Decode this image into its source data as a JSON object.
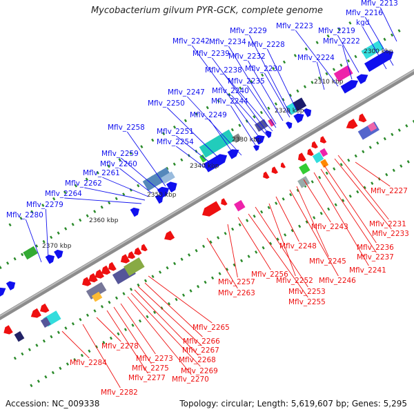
{
  "header": {
    "title": "Mycobacterium gilvum PYR-GCK, complete genome"
  },
  "footer": {
    "accession": "Accession: NC_009338",
    "summary": "Topology: circular; Length: 5,619,607 bp; Genes: 5,295"
  },
  "colors": {
    "forward": "#1010ee",
    "reverse": "#ee1010",
    "backbone": "#8c8c8c",
    "tick": "#2a8a2a"
  },
  "scale": {
    "ticks": [
      "2300 kbp",
      "2310 kbp",
      "2320 kbp",
      "2330 kbp",
      "2340 kbp",
      "2350 kbp",
      "2360 kbp",
      "2370 kbp"
    ]
  },
  "forward_labels": [
    "Mflv_2213",
    "Mflv_2216",
    "kgd",
    "Mflv_2219",
    "Mflv_2222",
    "Mflv_2223",
    "Mflv_2224",
    "Mflv_2228",
    "Mflv_2229",
    "Mflv_2230",
    "Mflv_2232",
    "Mflv_2234",
    "Mflv_2235",
    "Mflv_2238",
    "Mflv_2239",
    "Mflv_2240",
    "Mflv_2242",
    "Mflv_2244",
    "Mflv_2247",
    "Mflv_2249",
    "Mflv_2250",
    "Mflv_2251",
    "Mflv_2254",
    "Mflv_2258",
    "Mflv_2259",
    "Mflv_2260",
    "Mflv_2261",
    "Mflv_2262",
    "Mflv_2264",
    "Mflv_2279",
    "Mflv_2280"
  ],
  "reverse_labels": [
    "Mflv_2227",
    "Mflv_2231",
    "Mflv_2233",
    "Mflv_2236",
    "Mflv_2237",
    "Mflv_2241",
    "Mflv_2243",
    "Mflv_2245",
    "Mflv_2246",
    "Mflv_2248",
    "Mflv_2252",
    "Mflv_2253",
    "Mflv_2255",
    "Mflv_2256",
    "Mflv_2257",
    "Mflv_2263",
    "Mflv_2265",
    "Mflv_2266",
    "Mflv_2267",
    "Mflv_2268",
    "Mflv_2269",
    "Mflv_2270",
    "Mflv_2273",
    "Mflv_2275",
    "Mflv_2277",
    "Mflv_2278",
    "Mflv_2282",
    "Mflv_2284"
  ]
}
